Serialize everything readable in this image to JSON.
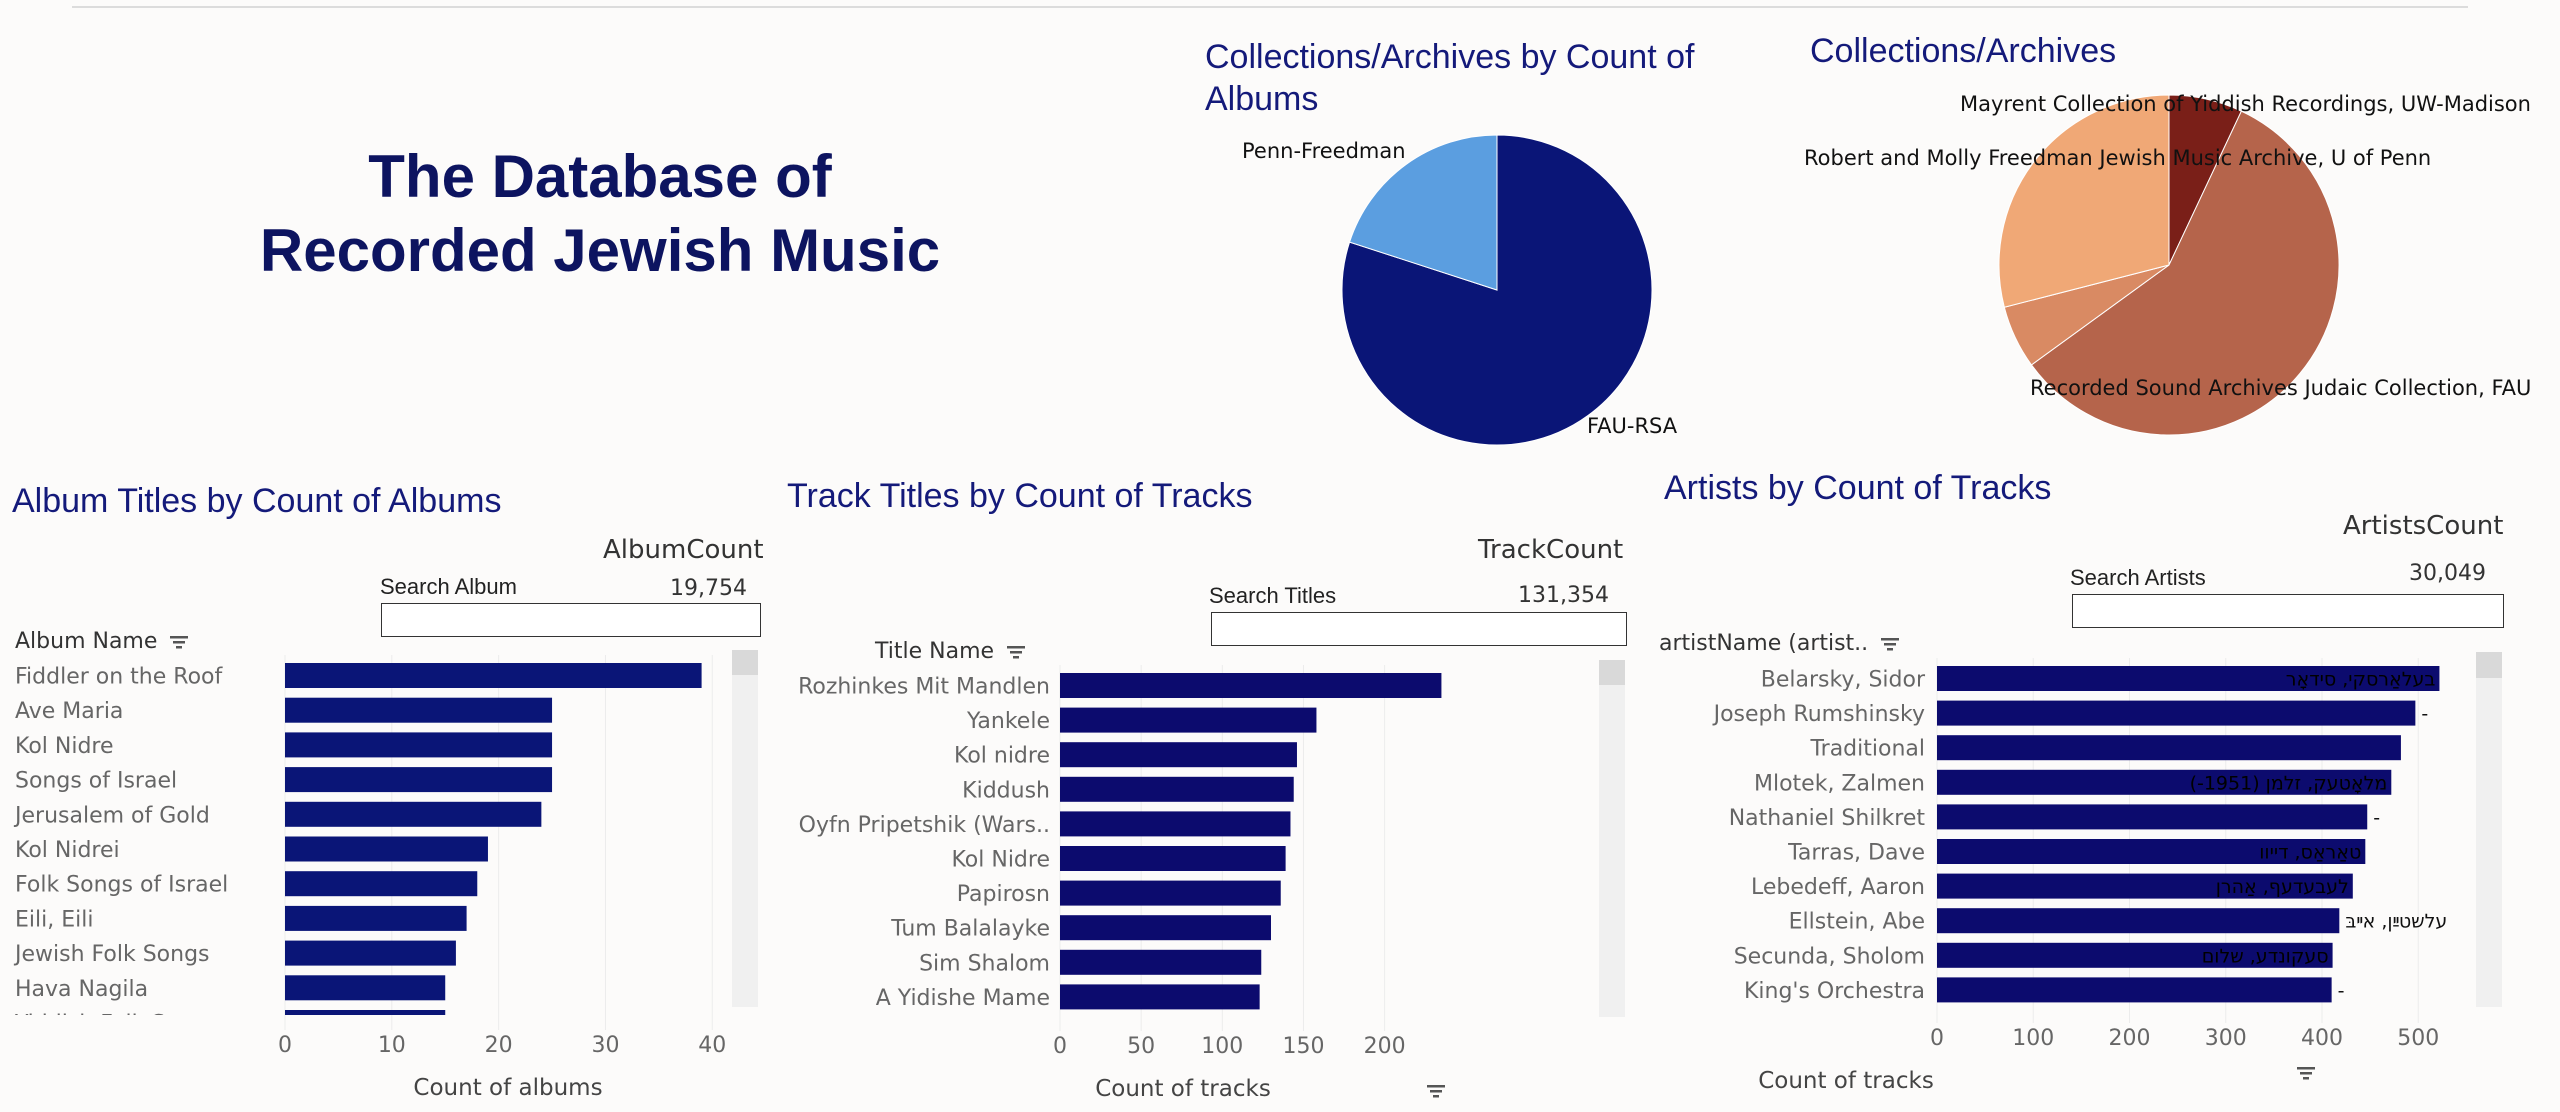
{
  "dashboard": {
    "title_line1": "The Database of",
    "title_line2": "Recorded Jewish Music"
  },
  "pie_albums": {
    "title": "Collections/Archives by Count of Albums",
    "slices": [
      {
        "label": "FAU-RSA",
        "value": 80,
        "color": "#0a1577"
      },
      {
        "label": "Penn-Freedman",
        "value": 20,
        "color": "#5b9ee0"
      }
    ]
  },
  "pie_collections": {
    "title": "Collections/Archives",
    "slices": [
      {
        "label": "Mayrent Collection of Yiddish Recordings, UW-Madison",
        "value": 7,
        "color": "#7a1f18"
      },
      {
        "label": "Recorded Sound Archives Judaic Collection, FAU",
        "value": 58,
        "color": "#b5644b"
      },
      {
        "label": "",
        "value": 6,
        "color": "#d98a63"
      },
      {
        "label": "Robert and Molly Freedman Jewish Music Archive, U of Penn",
        "value": 29,
        "color": "#f0a876"
      }
    ]
  },
  "albums": {
    "title": "Album Titles by Count of Albums",
    "param_title": "AlbumCount",
    "search_label": "Search Album",
    "count_value": "19,754",
    "search_value": "",
    "header": "Album Name",
    "x_axis_title": "Count of albums",
    "ticks": [
      "0",
      "10",
      "20",
      "30",
      "40"
    ]
  },
  "tracks": {
    "title": "Track Titles by Count of Tracks",
    "param_title": "TrackCount",
    "search_label": "Search Titles",
    "count_value": "131,354",
    "search_value": "",
    "header": "Title Name",
    "x_axis_title": "Count of tracks",
    "ticks": [
      "0",
      "50",
      "100",
      "150",
      "200"
    ]
  },
  "artists": {
    "title": "Artists by Count of Tracks",
    "param_title": "ArtistsCount",
    "search_label": "Search Artists",
    "count_value": "30,049",
    "search_value": "",
    "header": "artistName (artist..",
    "x_axis_title": "Count of tracks",
    "ticks": [
      "0",
      "100",
      "200",
      "300",
      "400",
      "500"
    ]
  },
  "chart_data": [
    {
      "type": "bar",
      "title": "Album Titles by Count of Albums",
      "xlabel": "Count of albums",
      "ylabel": "Album Name",
      "xlim": [
        0,
        44
      ],
      "categories": [
        "Fiddler on the Roof",
        "Ave Maria",
        "Kol Nidre",
        "Songs of Israel",
        "Jerusalem of Gold",
        "Kol Nidrei",
        "Folk Songs of Israel",
        "Eili, Eili",
        "Jewish Folk Songs",
        "Hava Nagila",
        "Yiddish Folk S.."
      ],
      "values": [
        39,
        25,
        25,
        25,
        24,
        19,
        18,
        17,
        16,
        15,
        15
      ]
    },
    {
      "type": "bar",
      "title": "Track Titles by Count of Tracks",
      "xlabel": "Count of tracks",
      "ylabel": "Title Name",
      "xlim": [
        0,
        260
      ],
      "categories": [
        "Rozhinkes Mit Mandlen",
        "Yankele",
        "Kol nidre",
        "Kiddush",
        "Oyfn Pripetshik (Wars..",
        "Kol Nidre",
        "Papirosn",
        "Tum Balalayke",
        "Sim Shalom",
        "A Yidishe Mame"
      ],
      "values": [
        235,
        158,
        146,
        144,
        142,
        139,
        136,
        130,
        124,
        123
      ]
    },
    {
      "type": "bar",
      "title": "Artists by Count of Tracks",
      "xlabel": "Count of tracks",
      "ylabel": "artistName (artist..",
      "xlim": [
        0,
        560
      ],
      "categories": [
        "Belarsky, Sidor",
        "Joseph Rumshinsky",
        "Traditional",
        "Mlotek, Zalmen",
        "Nathaniel Shilkret",
        "Tarras, Dave",
        "Lebedeff, Aaron",
        "Ellstein, Abe",
        "Secunda, Sholom",
        "King's Orchestra"
      ],
      "values": [
        522,
        497,
        482,
        472,
        447,
        445,
        432,
        418,
        411,
        410
      ],
      "data_labels": [
        "בעלאַרסקי, סידאָר",
        "-",
        "",
        "מלאָטעק, זלמן (1951-)",
        "-",
        "טאַראַס, דייוו",
        "לעבעדעף, אַהרן",
        "עלשטײַן, אײבּ",
        "סעקונדע, שלום",
        "-"
      ]
    }
  ]
}
